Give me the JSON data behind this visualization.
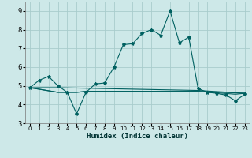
{
  "xlabel": "Humidex (Indice chaleur)",
  "xlim": [
    -0.5,
    23.5
  ],
  "ylim": [
    3,
    9.5
  ],
  "yticks": [
    3,
    4,
    5,
    6,
    7,
    8,
    9
  ],
  "xticks": [
    0,
    1,
    2,
    3,
    4,
    5,
    6,
    7,
    8,
    9,
    10,
    11,
    12,
    13,
    14,
    15,
    16,
    17,
    18,
    19,
    20,
    21,
    22,
    23
  ],
  "background_color": "#cde8e8",
  "grid_color": "#a8cccc",
  "line_color": "#006060",
  "series": [
    {
      "x": [
        0,
        1,
        2,
        3,
        4,
        5,
        6,
        7,
        8,
        9,
        10,
        11,
        12,
        13,
        14,
        15,
        16,
        17,
        18,
        19,
        20,
        21,
        22,
        23
      ],
      "y": [
        4.9,
        5.3,
        5.5,
        5.0,
        4.65,
        3.5,
        4.65,
        5.1,
        5.15,
        6.0,
        7.2,
        7.25,
        7.8,
        8.0,
        7.7,
        9.0,
        7.3,
        7.6,
        4.85,
        4.65,
        4.6,
        4.5,
        4.2,
        4.55
      ],
      "marker": true
    },
    {
      "x": [
        0,
        3,
        18,
        23
      ],
      "y": [
        4.9,
        4.9,
        4.75,
        4.6
      ],
      "marker": false
    },
    {
      "x": [
        0,
        3,
        5,
        6,
        18,
        23
      ],
      "y": [
        4.9,
        4.65,
        4.65,
        4.7,
        4.7,
        4.6
      ],
      "marker": false
    },
    {
      "x": [
        0,
        3,
        5,
        6,
        18,
        22,
        23
      ],
      "y": [
        4.9,
        4.65,
        4.65,
        4.7,
        4.7,
        4.55,
        4.6
      ],
      "marker": false
    }
  ]
}
